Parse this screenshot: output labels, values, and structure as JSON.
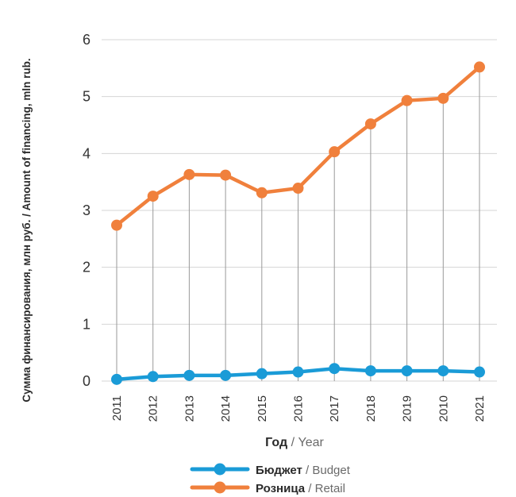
{
  "chart_data": {
    "type": "line",
    "title": "",
    "ylabel": "Сумма финансирования, млн руб. / Amount of financing, mln rub.",
    "xlabel": {
      "ru": "Год",
      "sep": " / ",
      "en": "Year"
    },
    "ylim": [
      0,
      6
    ],
    "yticks": [
      "0",
      "1",
      "2",
      "3",
      "4",
      "5",
      "6"
    ],
    "grid": true,
    "drop_lines": true,
    "legend_position": "bottom-center",
    "categories": [
      "2011",
      "2012",
      "2013",
      "2014",
      "2015",
      "2016",
      "2017",
      "2018",
      "2019",
      "2010",
      "2021"
    ],
    "series": [
      {
        "key": "budget",
        "name_ru": "Бюджет",
        "name_en": "Budget",
        "color": "#1a9bd7",
        "values": [
          0.03,
          0.08,
          0.1,
          0.1,
          0.13,
          0.16,
          0.22,
          0.18,
          0.18,
          0.18,
          0.16
        ]
      },
      {
        "key": "retail",
        "name_ru": "Розница",
        "name_en": "Retail",
        "color": "#f0803c",
        "values": [
          2.74,
          3.25,
          3.63,
          3.62,
          3.31,
          3.39,
          4.03,
          4.52,
          4.93,
          4.97,
          5.52
        ]
      }
    ],
    "colors": {
      "grid": "#d4d4d4",
      "drop_line": "#9a9a9a",
      "axis_text": "#333333"
    }
  }
}
